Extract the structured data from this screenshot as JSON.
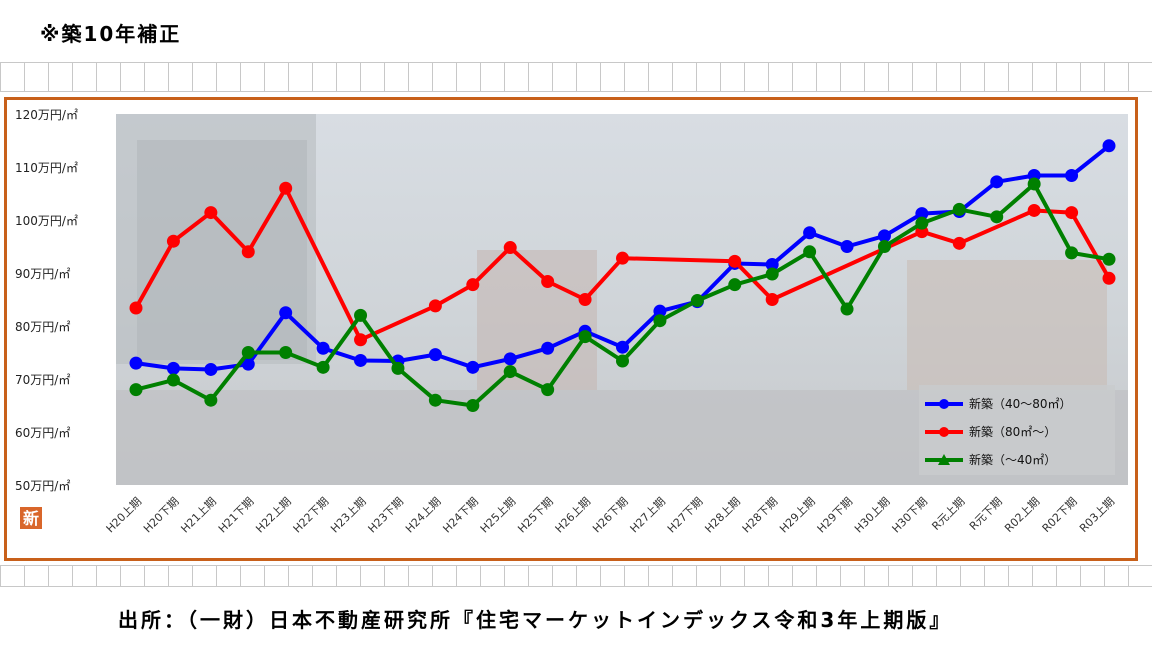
{
  "header": {
    "note": "※築10年補正"
  },
  "footer": {
    "source": "出所：（一財）日本不動産研究所『住宅マーケットインデックス令和3年上期版』"
  },
  "badge": {
    "char": "新"
  },
  "colors": {
    "frame": "#c8601a",
    "blue": "#0000ff",
    "red": "#ff0000",
    "green": "#008000"
  },
  "chart_data": {
    "type": "line",
    "title": "",
    "xlabel": "",
    "ylabel": "",
    "ylim": [
      50,
      120
    ],
    "yticks": [
      {
        "value": 120,
        "label": "120万円/㎡"
      },
      {
        "value": 110,
        "label": "110万円/㎡"
      },
      {
        "value": 100,
        "label": "100万円/㎡"
      },
      {
        "value": 90,
        "label": "90万円/㎡"
      },
      {
        "value": 80,
        "label": "80万円/㎡"
      },
      {
        "value": 70,
        "label": "70万円/㎡"
      },
      {
        "value": 60,
        "label": "60万円/㎡"
      },
      {
        "value": 50,
        "label": "50万円/㎡"
      }
    ],
    "categories": [
      "H20上期",
      "H20下期",
      "H21上期",
      "H21下期",
      "H22上期",
      "H22下期",
      "H23上期",
      "H23下期",
      "H24上期",
      "H24下期",
      "H25上期",
      "H25下期",
      "H26上期",
      "H26下期",
      "H27上期",
      "H27下期",
      "H28上期",
      "H28下期",
      "H29上期",
      "H29下期",
      "H30上期",
      "H30下期",
      "R元上期",
      "R元下期",
      "R02上期",
      "R02下期",
      "R03上期"
    ],
    "legend_position": "bottom-right",
    "series": [
      {
        "name": "新築（40～80㎡）",
        "color": "#0000ff",
        "marker": "circle",
        "values": [
          73,
          72,
          71.8,
          72.8,
          82.5,
          75.8,
          73.5,
          73.4,
          74.6,
          72.2,
          73.8,
          75.8,
          79,
          76,
          82.8,
          84.6,
          91.8,
          91.6,
          97.6,
          95,
          97,
          101.2,
          101.6,
          107.2,
          108.4,
          108.4,
          114
        ]
      },
      {
        "name": "新築（80㎡～）",
        "color": "#ff0000",
        "marker": "circle",
        "values": [
          83.4,
          96,
          101.4,
          94,
          106,
          null,
          77.4,
          null,
          83.8,
          87.8,
          94.8,
          88.4,
          85,
          92.8,
          null,
          null,
          92.2,
          85,
          null,
          null,
          null,
          97.8,
          95.6,
          null,
          101.8,
          101.4,
          89
        ]
      },
      {
        "name": "新築（～40㎡）",
        "color": "#008000",
        "marker": "triangle",
        "values": [
          68,
          69.8,
          66,
          75,
          75,
          72.2,
          82,
          72,
          66,
          65,
          71.4,
          68,
          78,
          73.4,
          81,
          84.8,
          87.8,
          89.8,
          94,
          83.2,
          95,
          99.4,
          102,
          100.6,
          106.8,
          93.8,
          92.6
        ]
      }
    ]
  }
}
